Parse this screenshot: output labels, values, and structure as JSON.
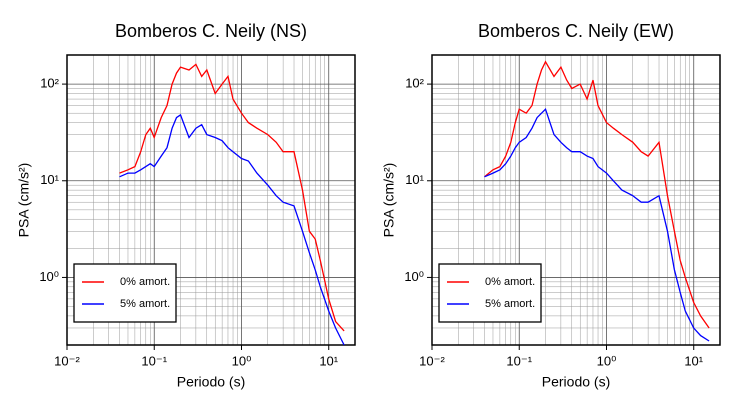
{
  "chart_data": [
    {
      "type": "line",
      "title": "Bomberos C. Neily (NS)",
      "xlabel": "Periodo (s)",
      "ylabel": "PSA (cm/s²)",
      "xscale": "log",
      "yscale": "log",
      "grid": true,
      "legend": "lower left",
      "xlim": [
        0.01,
        20
      ],
      "ylim": [
        0.2,
        200
      ],
      "xticks": [
        {
          "value": 0.01,
          "label": "10⁻²"
        },
        {
          "value": 0.1,
          "label": "10⁻¹"
        },
        {
          "value": 1,
          "label": "10⁰"
        },
        {
          "value": 10,
          "label": "10¹"
        }
      ],
      "yticks": [
        {
          "value": 1,
          "label": "10⁰"
        },
        {
          "value": 10,
          "label": "10¹"
        },
        {
          "value": 100,
          "label": "10²"
        }
      ],
      "x": [
        0.04,
        0.05,
        0.06,
        0.07,
        0.08,
        0.09,
        0.1,
        0.12,
        0.14,
        0.16,
        0.18,
        0.2,
        0.25,
        0.3,
        0.35,
        0.4,
        0.5,
        0.6,
        0.7,
        0.8,
        1,
        1.2,
        1.5,
        2,
        2.5,
        3,
        4,
        5,
        6,
        7,
        8,
        10,
        12,
        15
      ],
      "series": [
        {
          "name": "0% amort.",
          "color": "#ff0000",
          "values": [
            12,
            13,
            14,
            20,
            30,
            35,
            28,
            45,
            60,
            100,
            130,
            150,
            140,
            160,
            120,
            140,
            80,
            100,
            120,
            70,
            50,
            40,
            35,
            30,
            25,
            20,
            20,
            8,
            3,
            2.5,
            1.5,
            0.6,
            0.35,
            0.28
          ]
        },
        {
          "name": "5% amort.",
          "color": "#0000ff",
          "values": [
            11,
            12,
            12,
            13,
            14,
            15,
            14,
            18,
            22,
            35,
            45,
            48,
            28,
            35,
            38,
            30,
            28,
            26,
            22,
            20,
            17,
            16,
            12,
            9,
            7,
            6,
            5.5,
            3,
            1.8,
            1.2,
            0.8,
            0.45,
            0.3,
            0.2
          ]
        }
      ]
    },
    {
      "type": "line",
      "title": "Bomberos C. Neily (EW)",
      "xlabel": "Periodo (s)",
      "ylabel": "PSA (cm/s²)",
      "xscale": "log",
      "yscale": "log",
      "grid": true,
      "legend": "lower left",
      "xlim": [
        0.01,
        20
      ],
      "ylim": [
        0.2,
        200
      ],
      "xticks": [
        {
          "value": 0.01,
          "label": "10⁻²"
        },
        {
          "value": 0.1,
          "label": "10⁻¹"
        },
        {
          "value": 1,
          "label": "10⁰"
        },
        {
          "value": 10,
          "label": "10¹"
        }
      ],
      "yticks": [
        {
          "value": 1,
          "label": "10⁰"
        },
        {
          "value": 10,
          "label": "10¹"
        },
        {
          "value": 100,
          "label": "10²"
        }
      ],
      "x": [
        0.04,
        0.05,
        0.06,
        0.07,
        0.08,
        0.09,
        0.1,
        0.12,
        0.14,
        0.16,
        0.18,
        0.2,
        0.25,
        0.3,
        0.35,
        0.4,
        0.5,
        0.6,
        0.7,
        0.8,
        1,
        1.2,
        1.5,
        2,
        2.5,
        3,
        4,
        5,
        6,
        7,
        8,
        10,
        12,
        15
      ],
      "series": [
        {
          "name": "0% amort.",
          "color": "#ff0000",
          "values": [
            11,
            13,
            14,
            18,
            25,
            40,
            55,
            50,
            60,
            100,
            140,
            170,
            120,
            150,
            110,
            90,
            100,
            70,
            110,
            60,
            40,
            35,
            30,
            25,
            20,
            18,
            25,
            7,
            3,
            1.5,
            1,
            0.55,
            0.4,
            0.3
          ]
        },
        {
          "name": "5% amort.",
          "color": "#0000ff",
          "values": [
            11,
            12,
            13,
            15,
            18,
            22,
            25,
            28,
            35,
            45,
            50,
            55,
            30,
            25,
            22,
            20,
            20,
            18,
            17,
            14,
            12,
            10,
            8,
            7,
            6,
            6,
            7,
            3,
            1.2,
            0.7,
            0.45,
            0.3,
            0.25,
            0.22
          ]
        }
      ]
    }
  ]
}
